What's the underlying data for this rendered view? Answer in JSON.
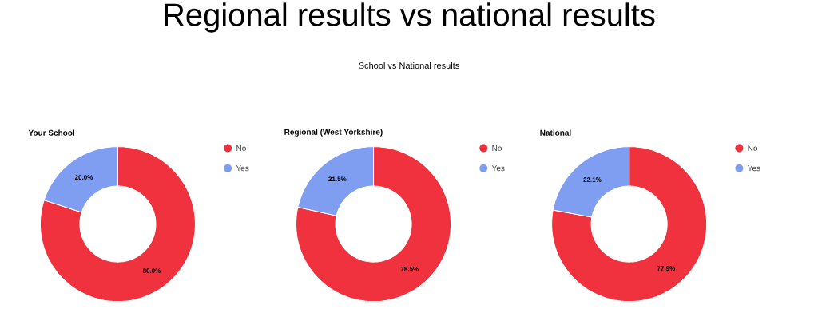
{
  "chart_data": [
    {
      "type": "other",
      "title": "Regional results vs national results",
      "subtitle": "School vs National results"
    },
    {
      "type": "donut",
      "title": "Your School",
      "categories": [
        "No",
        "Yes"
      ],
      "values": [
        80.0,
        20.0
      ],
      "colors": [
        "#f0323f",
        "#7f9ef2"
      ],
      "value_labels": [
        "80.0%",
        "20.0%"
      ],
      "legend": "top right"
    },
    {
      "type": "donut",
      "title": "Regional (West Yorkshire)",
      "categories": [
        "No",
        "Yes"
      ],
      "values": [
        78.5,
        21.5
      ],
      "colors": [
        "#f0323f",
        "#7f9ef2"
      ],
      "value_labels": [
        "78.5%",
        "21.5%"
      ],
      "legend": "top right"
    },
    {
      "type": "donut",
      "title": "National",
      "categories": [
        "No",
        "Yes"
      ],
      "values": [
        77.9,
        22.1
      ],
      "colors": [
        "#f0323f",
        "#7f9ef2"
      ],
      "value_labels": [
        "77.9%",
        "22.1%"
      ],
      "legend": "top right"
    }
  ]
}
